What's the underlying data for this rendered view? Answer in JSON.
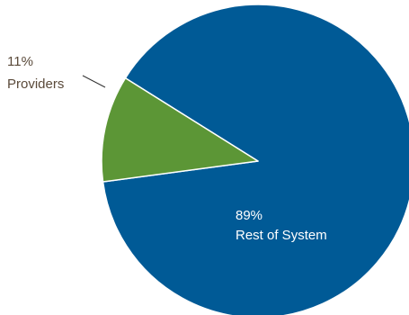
{
  "chart_data": {
    "type": "pie",
    "slices": [
      {
        "pct_label": "89%",
        "name": "Rest of System",
        "value": 89,
        "color": "#005a96"
      },
      {
        "pct_label": "11%",
        "name": "Providers",
        "value": 11,
        "color": "#5c9636"
      }
    ],
    "label_color_inside": "#ffffff",
    "label_color_outside": "#5a4a3a",
    "leader_color": "#333333"
  }
}
